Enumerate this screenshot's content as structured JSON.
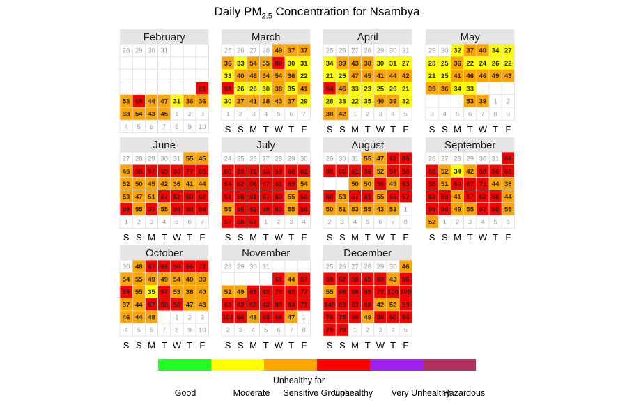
{
  "chart_data": {
    "type": "heatmap",
    "title": "Daily PM",
    "title_subscript": "2.5",
    "title_suffix": " Concentration for Nsambya",
    "weekday_labels": [
      "S",
      "S",
      "M",
      "T",
      "W",
      "T",
      "F"
    ],
    "legend": {
      "categories": [
        {
          "label": "Good",
          "color": "#22ff22"
        },
        {
          "label": "Moderate",
          "color": "#ffff00"
        },
        {
          "label": "Unhealthy for Sensitive Groups",
          "color": "#ffa500"
        },
        {
          "label": "Unhealthy",
          "color": "#ff0000"
        },
        {
          "label": "Very Unhealthy",
          "color": "#a020f0"
        },
        {
          "label": "Hazardous",
          "color": "#b03060"
        }
      ]
    },
    "months": [
      {
        "name": "February",
        "rows": [
          [
            "28",
            "29",
            "30",
            "31",
            "",
            "",
            ""
          ],
          [
            "",
            "",
            "",
            "",
            "",
            "",
            ""
          ],
          [
            "",
            "",
            "",
            "",
            "",
            "",
            ""
          ],
          [
            "",
            "",
            "",
            "",
            "",
            "",
            "61"
          ],
          [
            "53",
            "69",
            "44",
            "47",
            "31",
            "36",
            "36"
          ],
          [
            "38",
            "54",
            "43",
            "45",
            "1",
            "2",
            "3"
          ],
          [
            "4",
            "5",
            "6",
            "7",
            "8",
            "9",
            "10"
          ]
        ]
      },
      {
        "name": "March",
        "rows": [
          [
            "25",
            "26",
            "27",
            "28",
            "49",
            "37",
            "37"
          ],
          [
            "36",
            "33",
            "54",
            "55",
            "80",
            "30",
            "31"
          ],
          [
            "33",
            "40",
            "48",
            "54",
            "54",
            "36",
            "22"
          ],
          [
            "68",
            "26",
            "26",
            "30",
            "38",
            "35",
            "41"
          ],
          [
            "30",
            "37",
            "41",
            "38",
            "43",
            "37",
            "29"
          ],
          [
            "1",
            "2",
            "3",
            "4",
            "5",
            "6",
            "7"
          ]
        ]
      },
      {
        "name": "April",
        "rows": [
          [
            "25",
            "26",
            "27",
            "28",
            "29",
            "30",
            "31"
          ],
          [
            "34",
            "39",
            "43",
            "38",
            "30",
            "31",
            "27"
          ],
          [
            "21",
            "25",
            "47",
            "45",
            "41",
            "44",
            "42"
          ],
          [
            "64",
            "46",
            "33",
            "23",
            "25",
            "26",
            "21"
          ],
          [
            "28",
            "33",
            "22",
            "35",
            "40",
            "39",
            "32"
          ],
          [
            "38",
            "42",
            "1",
            "2",
            "3",
            "4",
            "5"
          ]
        ]
      },
      {
        "name": "May",
        "rows": [
          [
            "29",
            "30",
            "32",
            "37",
            "40",
            "34",
            "27"
          ],
          [
            "28",
            "25",
            "36",
            "22",
            "24",
            "26",
            "22"
          ],
          [
            "21",
            "25",
            "41",
            "46",
            "46",
            "49",
            "43"
          ],
          [
            "39",
            "36",
            "34",
            "33",
            "",
            "",
            ""
          ],
          [
            "",
            "",
            "",
            "53",
            "39",
            "1",
            "2"
          ],
          [
            "3",
            "4",
            "5",
            "6",
            "7",
            "8",
            "9"
          ]
        ]
      },
      {
        "name": "June",
        "rows": [
          [
            "27",
            "28",
            "29",
            "30",
            "31",
            "55",
            "45"
          ],
          [
            "46",
            "59",
            "57",
            "65",
            "63",
            "77",
            "65"
          ],
          [
            "52",
            "50",
            "45",
            "42",
            "36",
            "41",
            "44"
          ],
          [
            "53",
            "47",
            "51",
            "67",
            "62",
            "60",
            "62"
          ],
          [
            "59",
            "55",
            "57",
            "55",
            "59",
            "58",
            "58"
          ],
          [
            "1",
            "2",
            "3",
            "4",
            "5",
            "6",
            "7"
          ]
        ]
      },
      {
        "name": "July",
        "rows": [
          [
            "24",
            "25",
            "26",
            "27",
            "28",
            "29",
            "30"
          ],
          [
            "60",
            "59",
            "72",
            "63",
            "69",
            "68",
            "62"
          ],
          [
            "64",
            "62",
            "66",
            "67",
            "61",
            "69",
            "54"
          ],
          [
            "61",
            "58",
            "61",
            "67",
            "60",
            "55",
            "56"
          ],
          [
            "55",
            "56",
            "62",
            "59",
            "60",
            "55",
            "56"
          ],
          [
            "57",
            "58",
            "67",
            "1",
            "2",
            "3",
            "4"
          ]
        ]
      },
      {
        "name": "August",
        "rows": [
          [
            "29",
            "30",
            "31",
            "55",
            "47",
            "62",
            "65"
          ],
          [
            "59",
            "65",
            "61",
            "56",
            "52",
            "57",
            "56"
          ],
          [
            "",
            "",
            "50",
            "50",
            "56",
            "49",
            "63"
          ],
          [
            "60",
            "53",
            "57",
            "61",
            "55",
            "56",
            "57"
          ],
          [
            "50",
            "51",
            "53",
            "55",
            "43",
            "53",
            "1"
          ],
          [
            "2",
            "3",
            "4",
            "5",
            "6",
            "7",
            "8"
          ]
        ]
      },
      {
        "name": "September",
        "rows": [
          [
            "26",
            "27",
            "28",
            "29",
            "30",
            "31",
            "66"
          ],
          [
            "58",
            "52",
            "34",
            "42",
            "58",
            "56",
            "63"
          ],
          [
            "58",
            "51",
            "60",
            "67",
            "71",
            "44",
            "38"
          ],
          [
            "63",
            "59",
            "41",
            "57",
            "62",
            "56",
            "44"
          ],
          [
            "59",
            "56",
            "49",
            "55",
            "57",
            "56",
            "55"
          ],
          [
            "52",
            "1",
            "2",
            "3",
            "4",
            "5",
            "6"
          ]
        ]
      },
      {
        "name": "October",
        "rows": [
          [
            "30",
            "48",
            "67",
            "62",
            "56",
            "66",
            "72"
          ],
          [
            "54",
            "55",
            "49",
            "49",
            "54",
            "40",
            "39"
          ],
          [
            "58",
            "55",
            "35",
            "57",
            "53",
            "36",
            "40"
          ],
          [
            "37",
            "44",
            "57",
            "58",
            "56",
            "47",
            "43"
          ],
          [
            "46",
            "44",
            "48",
            "",
            "1",
            "2",
            "3"
          ],
          [
            "4",
            "5",
            "6",
            "7",
            "8",
            "9",
            "10"
          ]
        ]
      },
      {
        "name": "November",
        "rows": [
          [
            "28",
            "29",
            "30",
            "31",
            "",
            "",
            ""
          ],
          [
            "",
            "",
            "",
            "",
            "61",
            "44",
            "57"
          ],
          [
            "52",
            "49",
            "61",
            "62",
            "72",
            "62",
            "77"
          ],
          [
            "63",
            "63",
            "68",
            "82",
            "89",
            "83",
            "71"
          ],
          [
            "102",
            "66",
            "48",
            "65",
            "68",
            "47",
            "1"
          ],
          [
            "2",
            "3",
            "4",
            "5",
            "6",
            "7",
            "8"
          ]
        ]
      },
      {
        "name": "December",
        "rows": [
          [
            "25",
            "26",
            "27",
            "28",
            "29",
            "30",
            "46"
          ],
          [
            "58",
            "62",
            "58",
            "65",
            "69",
            "43",
            "56"
          ],
          [
            "55",
            "66",
            "58",
            "89",
            "72",
            "100",
            "109"
          ],
          [
            "149",
            "83",
            "63",
            "68",
            "42",
            "52",
            "59"
          ],
          [
            "76",
            "75",
            "69",
            "49",
            "58",
            "60",
            "56"
          ],
          [
            "79",
            "79",
            "1",
            "2",
            "3",
            "4",
            "5"
          ]
        ]
      }
    ]
  }
}
